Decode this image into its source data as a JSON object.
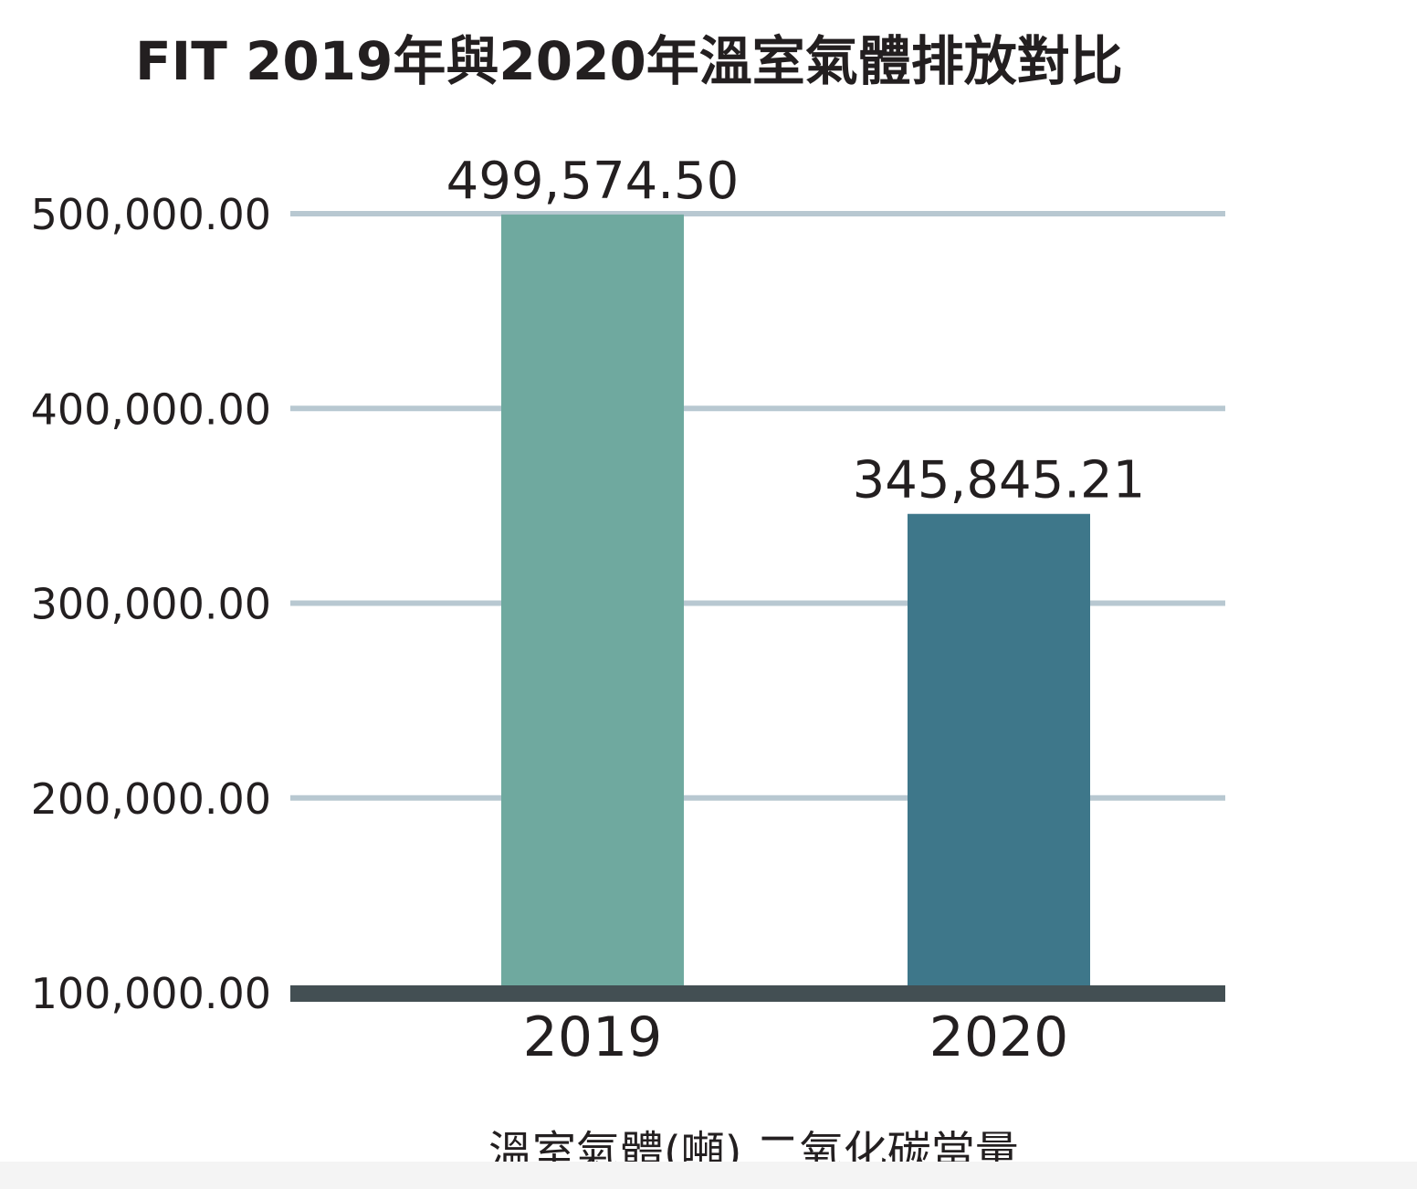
{
  "chart_data": {
    "type": "bar",
    "title": "FIT 2019年與2020年溫室氣體排放對比",
    "categories": [
      "2019",
      "2020"
    ],
    "values": [
      499574.5,
      345845.21
    ],
    "value_labels": [
      "499,574.50",
      "345,845.21"
    ],
    "bar_colors": [
      "#6fa99f",
      "#3e778a"
    ],
    "xlabel": "溫室氣體(噸) 二氧化碳當量",
    "ylabel": "",
    "ylim": [
      100000,
      500000
    ],
    "yticks": [
      100000,
      200000,
      300000,
      400000,
      500000
    ],
    "ytick_labels": [
      "100,000.00",
      "200,000.00",
      "300,000.00",
      "400,000.00",
      "500,000.00"
    ],
    "grid": true,
    "grid_color": "#b8c8d1",
    "baseline_color": "#434f53",
    "legend": "none"
  }
}
